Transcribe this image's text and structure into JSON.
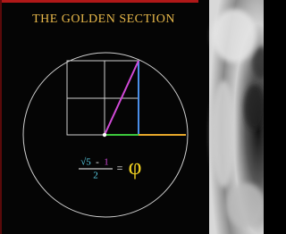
{
  "header": {
    "title": "THE GOLDEN SECTION"
  },
  "formula": {
    "root": "√5",
    "minus": "-",
    "one": "1",
    "denominator": "2",
    "equals": "=",
    "result": "φ"
  }
}
